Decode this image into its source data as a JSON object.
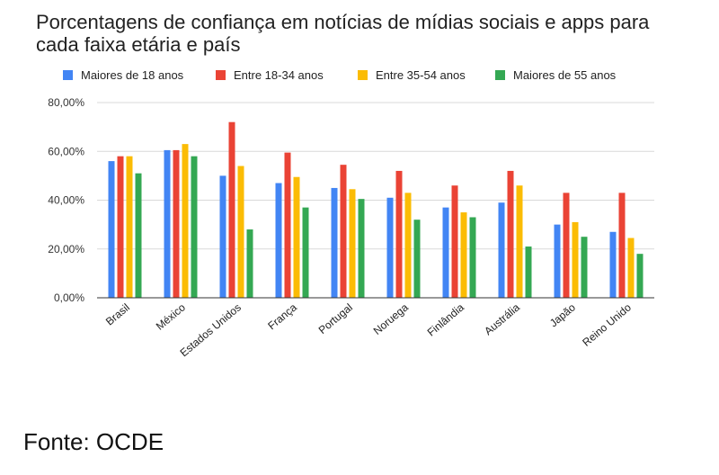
{
  "chart_data": {
    "type": "bar",
    "title": "Porcentagens de confiança em notícias de mídias sociais e apps para cada faixa etária e país",
    "xlabel": "",
    "ylabel": "",
    "ylim": [
      0,
      80
    ],
    "yticks": [
      "0,00%",
      "20,00%",
      "40,00%",
      "60,00%",
      "80,00%"
    ],
    "grid": true,
    "legend_position": "top",
    "categories": [
      "Brasil",
      "México",
      "Estados Unidos",
      "França",
      "Portugal",
      "Noruega",
      "Finlândia",
      "Austrália",
      "Japão",
      "Reino Unido"
    ],
    "series": [
      {
        "name": "Maiores de 18 anos",
        "color": "#4285F4",
        "values": [
          56,
          60.5,
          50,
          47,
          45,
          41,
          37,
          39,
          30,
          27
        ]
      },
      {
        "name": "Entre 18-34 anos",
        "color": "#EA4335",
        "values": [
          58,
          60.5,
          72,
          59.5,
          54.5,
          52,
          46,
          52,
          43,
          43
        ]
      },
      {
        "name": "Entre 35-54 anos",
        "color": "#FBBC04",
        "values": [
          58,
          63,
          54,
          49.5,
          44.5,
          43,
          35,
          46,
          31,
          24.5
        ]
      },
      {
        "name": "Maiores de 55 anos",
        "color": "#34A853",
        "values": [
          51,
          58,
          28,
          37,
          40.5,
          32,
          33,
          21,
          25,
          18
        ]
      }
    ]
  },
  "source": "Fonte: OCDE"
}
